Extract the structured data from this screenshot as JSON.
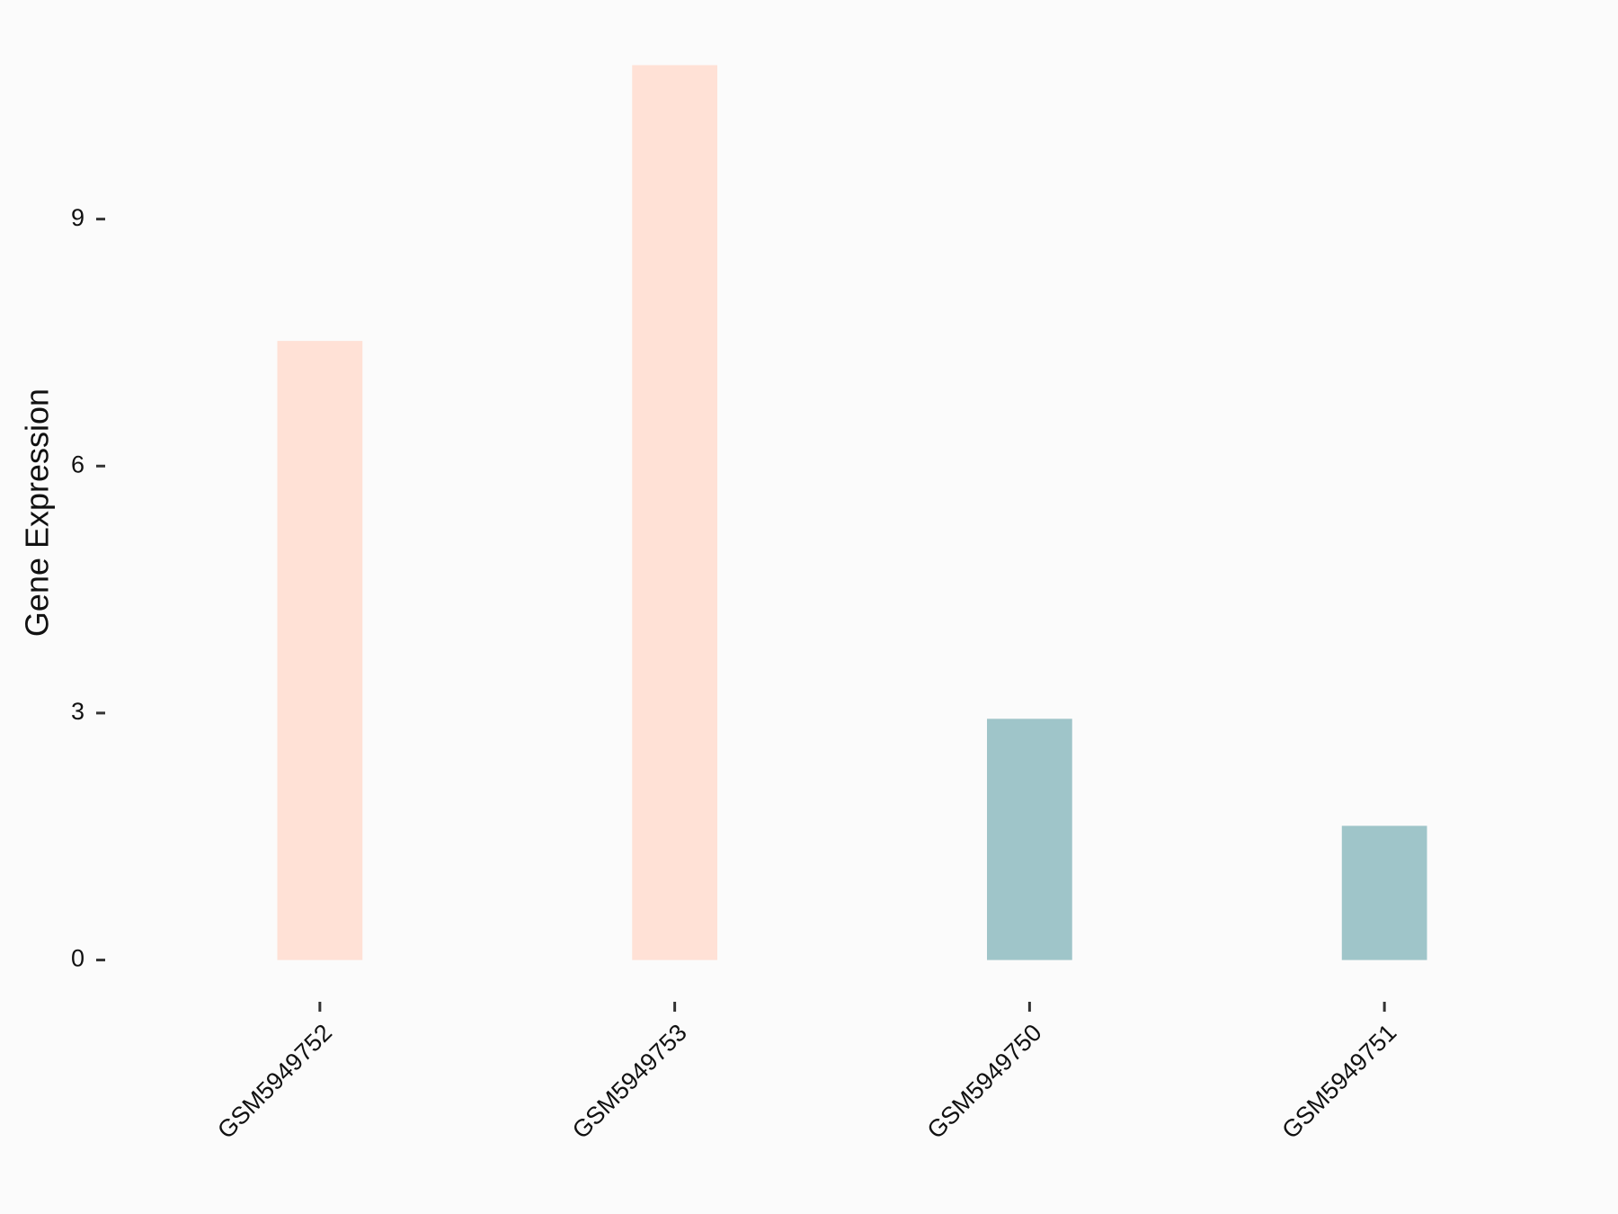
{
  "chart_data": {
    "type": "bar",
    "y_label": "Gene Expression",
    "categories": [
      "GSM5949752",
      "GSM5949753",
      "GSM5949750",
      "GSM5949751"
    ],
    "values": [
      7.52,
      10.87,
      2.93,
      1.63
    ],
    "colors": [
      "#FFE1D6",
      "#FFE1D6",
      "#9FC5C9",
      "#9FC5C9"
    ],
    "ylim": [
      -0.54,
      11.41
    ],
    "yticks": [
      0,
      3,
      6,
      9
    ]
  }
}
